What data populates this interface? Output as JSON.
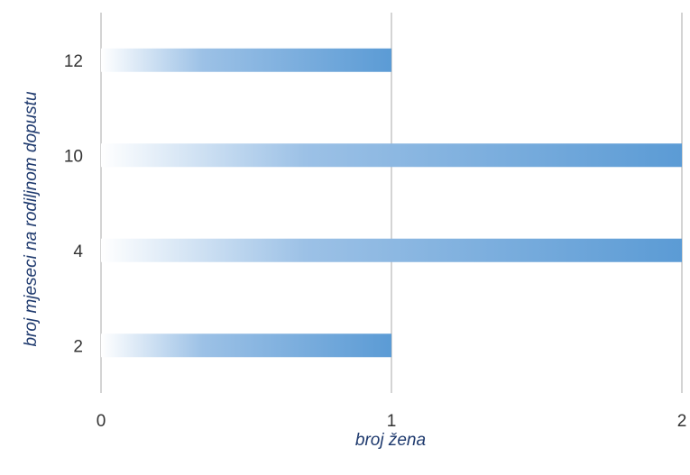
{
  "chart_data": {
    "type": "bar",
    "orientation": "horizontal",
    "categories": [
      "2",
      "4",
      "10",
      "12"
    ],
    "values": [
      1,
      2,
      2,
      1
    ],
    "xlabel": "broj žena",
    "ylabel": "broj mjeseci na rodiljnom dopustu",
    "xlim": [
      0,
      2
    ],
    "xticks": [
      "0",
      "1",
      "2"
    ],
    "grid": "vertical",
    "legend": "none",
    "bar_color": "#5b9bd5",
    "bar_fill": "gradient white to blue"
  }
}
